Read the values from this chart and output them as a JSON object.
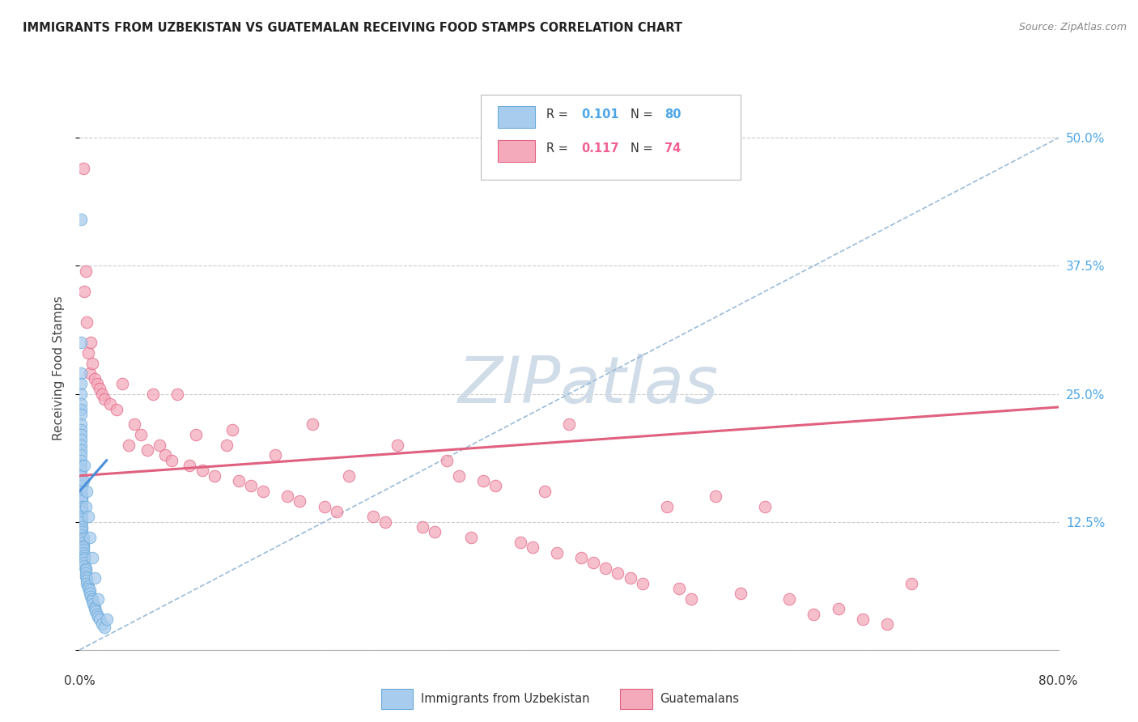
{
  "title": "IMMIGRANTS FROM UZBEKISTAN VS GUATEMALAN RECEIVING FOOD STAMPS CORRELATION CHART",
  "source": "Source: ZipAtlas.com",
  "ylabel": "Receiving Food Stamps",
  "ytick_values": [
    0.0,
    0.125,
    0.25,
    0.375,
    0.5
  ],
  "ytick_labels_right": [
    "",
    "12.5%",
    "25.0%",
    "37.5%",
    "50.0%"
  ],
  "legend_footer1": "Immigrants from Uzbekistan",
  "legend_footer2": "Guatemalans",
  "color_blue": "#A8CCEE",
  "color_pink": "#F4AABB",
  "color_blue_edge": "#6AAAD8",
  "color_pink_edge": "#E06080",
  "color_blue_text": "#4DA6E8",
  "color_pink_text": "#F06090",
  "color_dashed": "#9BBBD8",
  "watermark_color": "#D0DCE8",
  "xlim": [
    0.0,
    0.8
  ],
  "ylim": [
    0.0,
    0.55
  ],
  "pink_line_x": [
    0.0,
    0.8
  ],
  "pink_line_y": [
    0.17,
    0.237
  ],
  "blue_line_x": [
    0.0,
    0.022
  ],
  "blue_line_y": [
    0.155,
    0.185
  ],
  "dash_line_x": [
    0.0,
    0.8
  ],
  "dash_line_y": [
    0.0,
    0.5
  ],
  "uzbek_x": [
    0.001,
    0.001,
    0.001,
    0.001,
    0.001,
    0.001,
    0.001,
    0.001,
    0.001,
    0.001,
    0.001,
    0.001,
    0.001,
    0.001,
    0.001,
    0.001,
    0.001,
    0.001,
    0.001,
    0.001,
    0.002,
    0.002,
    0.002,
    0.002,
    0.002,
    0.002,
    0.002,
    0.002,
    0.002,
    0.002,
    0.002,
    0.002,
    0.002,
    0.002,
    0.002,
    0.003,
    0.003,
    0.003,
    0.003,
    0.003,
    0.003,
    0.003,
    0.004,
    0.004,
    0.004,
    0.004,
    0.004,
    0.005,
    0.005,
    0.005,
    0.005,
    0.006,
    0.006,
    0.006,
    0.007,
    0.007,
    0.008,
    0.008,
    0.009,
    0.01,
    0.01,
    0.011,
    0.012,
    0.012,
    0.013,
    0.014,
    0.015,
    0.016,
    0.018,
    0.02,
    0.003,
    0.004,
    0.005,
    0.006,
    0.007,
    0.008,
    0.01,
    0.012,
    0.015,
    0.022
  ],
  "uzbek_y": [
    0.42,
    0.3,
    0.27,
    0.26,
    0.25,
    0.24,
    0.235,
    0.23,
    0.22,
    0.215,
    0.21,
    0.205,
    0.2,
    0.195,
    0.19,
    0.185,
    0.18,
    0.175,
    0.17,
    0.165,
    0.16,
    0.155,
    0.15,
    0.148,
    0.145,
    0.14,
    0.138,
    0.135,
    0.13,
    0.128,
    0.125,
    0.12,
    0.118,
    0.115,
    0.112,
    0.11,
    0.108,
    0.105,
    0.102,
    0.1,
    0.098,
    0.095,
    0.092,
    0.09,
    0.088,
    0.085,
    0.082,
    0.08,
    0.078,
    0.075,
    0.072,
    0.07,
    0.068,
    0.065,
    0.062,
    0.06,
    0.058,
    0.055,
    0.052,
    0.05,
    0.048,
    0.045,
    0.042,
    0.04,
    0.038,
    0.035,
    0.032,
    0.03,
    0.025,
    0.022,
    0.165,
    0.18,
    0.14,
    0.155,
    0.13,
    0.11,
    0.09,
    0.07,
    0.05,
    0.03
  ],
  "guatemalan_x": [
    0.003,
    0.004,
    0.005,
    0.006,
    0.007,
    0.008,
    0.009,
    0.01,
    0.012,
    0.014,
    0.016,
    0.018,
    0.02,
    0.025,
    0.03,
    0.035,
    0.04,
    0.045,
    0.05,
    0.055,
    0.06,
    0.065,
    0.07,
    0.075,
    0.08,
    0.09,
    0.095,
    0.1,
    0.11,
    0.12,
    0.125,
    0.13,
    0.14,
    0.15,
    0.16,
    0.17,
    0.18,
    0.19,
    0.2,
    0.21,
    0.22,
    0.24,
    0.25,
    0.26,
    0.28,
    0.29,
    0.3,
    0.31,
    0.32,
    0.33,
    0.34,
    0.36,
    0.37,
    0.38,
    0.39,
    0.4,
    0.41,
    0.42,
    0.43,
    0.44,
    0.45,
    0.46,
    0.48,
    0.49,
    0.5,
    0.52,
    0.54,
    0.56,
    0.58,
    0.6,
    0.62,
    0.64,
    0.66,
    0.68
  ],
  "guatemalan_y": [
    0.47,
    0.35,
    0.37,
    0.32,
    0.29,
    0.27,
    0.3,
    0.28,
    0.265,
    0.26,
    0.255,
    0.25,
    0.245,
    0.24,
    0.235,
    0.26,
    0.2,
    0.22,
    0.21,
    0.195,
    0.25,
    0.2,
    0.19,
    0.185,
    0.25,
    0.18,
    0.21,
    0.175,
    0.17,
    0.2,
    0.215,
    0.165,
    0.16,
    0.155,
    0.19,
    0.15,
    0.145,
    0.22,
    0.14,
    0.135,
    0.17,
    0.13,
    0.125,
    0.2,
    0.12,
    0.115,
    0.185,
    0.17,
    0.11,
    0.165,
    0.16,
    0.105,
    0.1,
    0.155,
    0.095,
    0.22,
    0.09,
    0.085,
    0.08,
    0.075,
    0.07,
    0.065,
    0.14,
    0.06,
    0.05,
    0.15,
    0.055,
    0.14,
    0.05,
    0.035,
    0.04,
    0.03,
    0.025,
    0.065
  ]
}
